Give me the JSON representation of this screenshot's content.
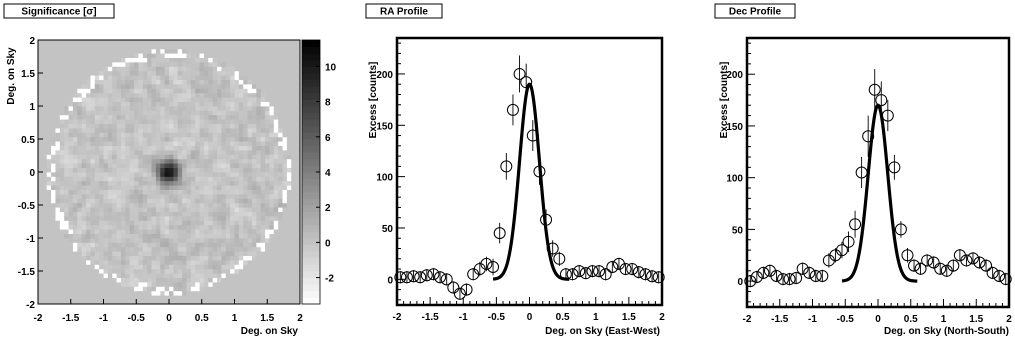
{
  "chart_data": [
    {
      "type": "heatmap",
      "title": "Significance [σ]",
      "xlabel": "Deg. on Sky",
      "ylabel": "Deg. on Sky",
      "xlim": [
        -2,
        2
      ],
      "ylim": [
        -2,
        2
      ],
      "x_ticks": [
        "-2",
        "-1.5",
        "-1",
        "-0.5",
        "0",
        "0.5",
        "1",
        "1.5",
        "2"
      ],
      "y_ticks": [
        "-2",
        "-1.5",
        "-1",
        "-0.5",
        "0",
        "0.5",
        "1",
        "1.5",
        "2"
      ],
      "colorbar": {
        "range": [
          -3.5,
          11.5
        ],
        "ticks": [
          "-2",
          "0",
          "2",
          "4",
          "6",
          "8",
          "10"
        ],
        "low_color": "#ffffff",
        "high_color": "#000000"
      },
      "map": {
        "field_radius_deg": 1.85,
        "outside_value": 0,
        "background_level": 0,
        "hotspot": {
          "x": 0,
          "y": 0,
          "peak": 11,
          "sigma_deg": 0.12
        }
      }
    },
    {
      "type": "scatter",
      "title": "RA Profile",
      "xlabel": "Deg. on Sky (East-West)",
      "ylabel": "Excess [counts]",
      "xlim": [
        -2,
        2
      ],
      "ylim": [
        -25,
        235
      ],
      "x_ticks": [
        "-2",
        "-1.5",
        "-1",
        "-0.5",
        "0",
        "0.5",
        "1",
        "1.5",
        "2"
      ],
      "y_ticks": [
        "0",
        "50",
        "100",
        "150",
        "200"
      ],
      "points": {
        "x": [
          -1.95,
          -1.85,
          -1.75,
          -1.65,
          -1.55,
          -1.45,
          -1.35,
          -1.25,
          -1.15,
          -1.05,
          -0.95,
          -0.85,
          -0.75,
          -0.65,
          -0.55,
          -0.45,
          -0.35,
          -0.25,
          -0.15,
          -0.05,
          0.05,
          0.15,
          0.25,
          0.35,
          0.45,
          0.55,
          0.65,
          0.75,
          0.85,
          0.95,
          1.05,
          1.15,
          1.25,
          1.35,
          1.45,
          1.55,
          1.65,
          1.75,
          1.85,
          1.95
        ],
        "y": [
          2,
          2,
          3,
          2,
          4,
          5,
          2,
          0,
          -8,
          -14,
          -10,
          5,
          10,
          15,
          12,
          45,
          110,
          165,
          200,
          192,
          140,
          105,
          58,
          30,
          20,
          5,
          5,
          8,
          6,
          8,
          8,
          5,
          12,
          15,
          10,
          10,
          7,
          5,
          3,
          2
        ],
        "err": [
          6,
          6,
          6,
          6,
          6,
          6,
          6,
          6,
          6,
          6,
          6,
          6,
          7,
          7,
          8,
          10,
          13,
          15,
          18,
          18,
          15,
          13,
          10,
          8,
          7,
          6,
          6,
          6,
          6,
          6,
          6,
          6,
          6,
          6,
          6,
          6,
          6,
          6,
          6,
          6
        ]
      },
      "fit": {
        "model": "gaussian",
        "amplitude": 190,
        "mean": 0.0,
        "sigma": 0.15,
        "offset": 0,
        "range": [
          -0.55,
          0.6
        ]
      }
    },
    {
      "type": "scatter",
      "title": "Dec Profile",
      "xlabel": "Deg. on Sky (North-South)",
      "ylabel": "Excess [counts]",
      "xlim": [
        -2,
        2
      ],
      "ylim": [
        -25,
        235
      ],
      "x_ticks": [
        "-2",
        "-1.5",
        "-1",
        "-0.5",
        "0",
        "0.5",
        "1",
        "1.5",
        "2"
      ],
      "y_ticks": [
        "0",
        "50",
        "100",
        "150",
        "200"
      ],
      "points": {
        "x": [
          -1.95,
          -1.85,
          -1.75,
          -1.65,
          -1.55,
          -1.45,
          -1.35,
          -1.25,
          -1.15,
          -1.05,
          -0.95,
          -0.85,
          -0.75,
          -0.65,
          -0.55,
          -0.45,
          -0.35,
          -0.25,
          -0.15,
          -0.05,
          0.05,
          0.15,
          0.25,
          0.35,
          0.45,
          0.55,
          0.65,
          0.75,
          0.85,
          0.95,
          1.05,
          1.15,
          1.25,
          1.35,
          1.45,
          1.55,
          1.65,
          1.75,
          1.85,
          1.95
        ],
        "y": [
          0,
          4,
          8,
          10,
          5,
          2,
          2,
          3,
          12,
          8,
          5,
          5,
          20,
          25,
          30,
          38,
          55,
          105,
          140,
          185,
          175,
          160,
          110,
          50,
          25,
          15,
          12,
          20,
          18,
          12,
          10,
          15,
          25,
          20,
          22,
          18,
          15,
          8,
          5,
          2
        ],
        "err": [
          6,
          6,
          6,
          6,
          6,
          6,
          6,
          6,
          6,
          6,
          6,
          6,
          7,
          7,
          8,
          10,
          13,
          15,
          20,
          20,
          18,
          15,
          12,
          8,
          7,
          6,
          6,
          6,
          6,
          6,
          6,
          6,
          6,
          6,
          6,
          6,
          6,
          6,
          6,
          6
        ]
      },
      "fit": {
        "model": "gaussian",
        "amplitude": 170,
        "mean": 0.0,
        "sigma": 0.15,
        "offset": 0,
        "range": [
          -0.55,
          0.6
        ]
      }
    }
  ]
}
